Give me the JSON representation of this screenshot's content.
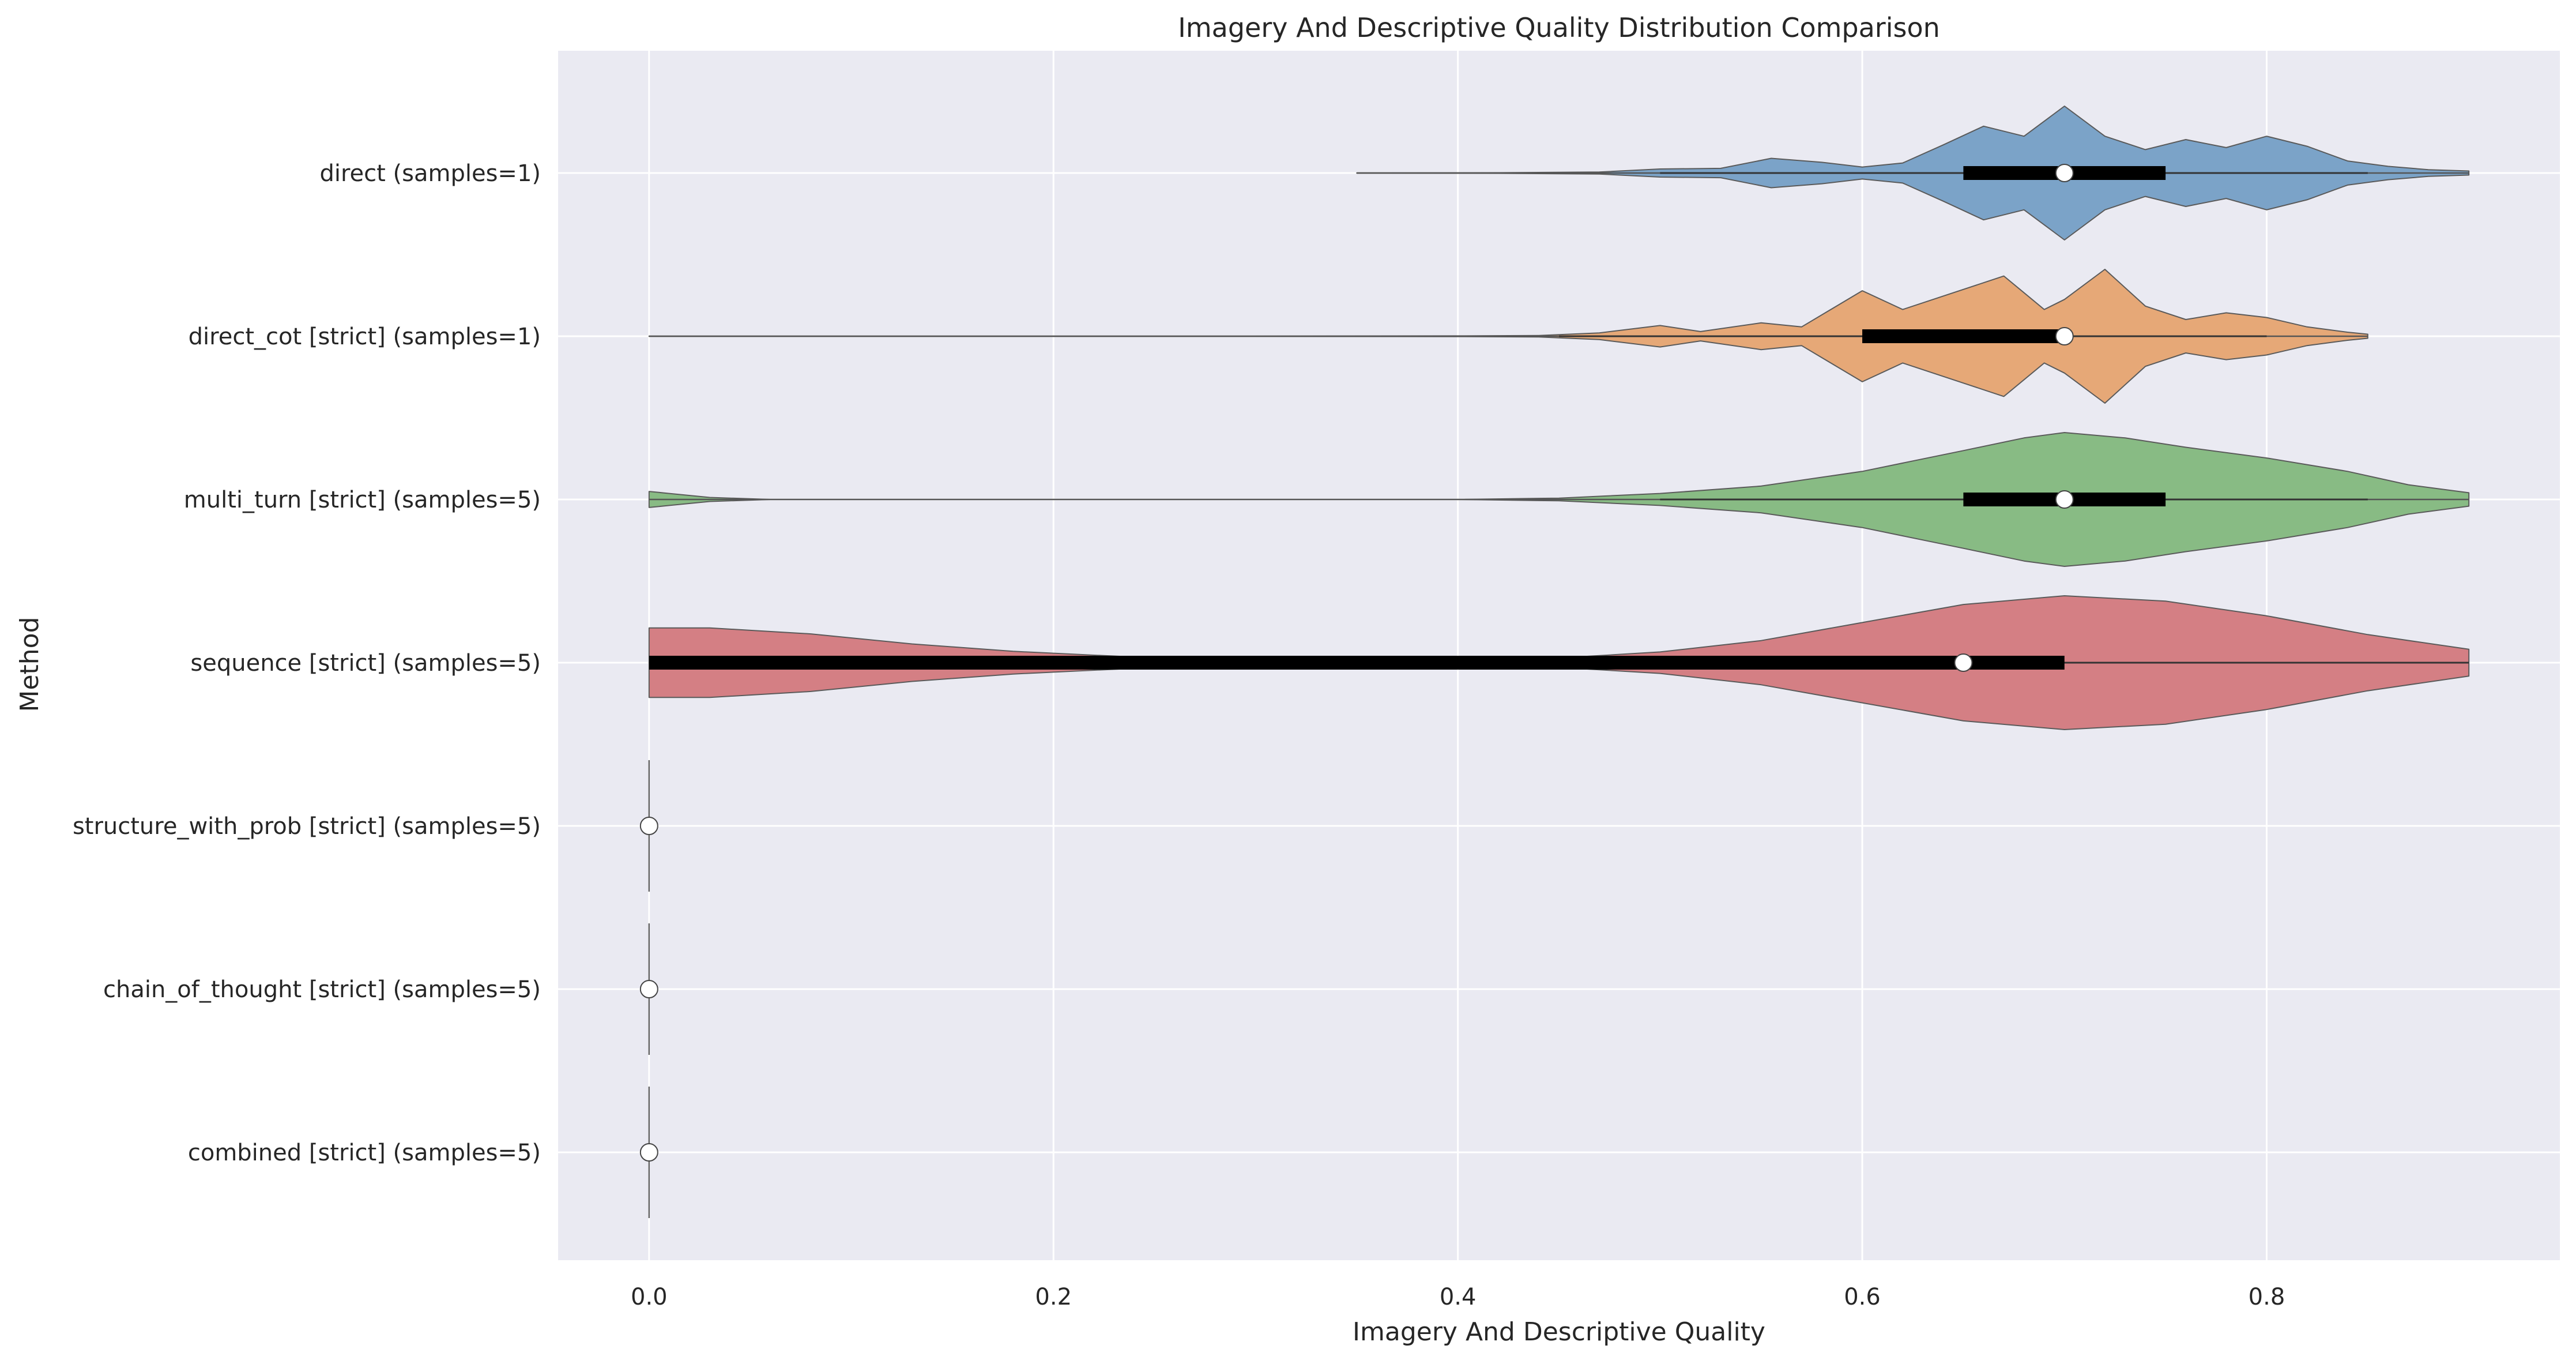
{
  "chart_data": {
    "type": "violin",
    "title": "Imagery And Descriptive Quality Distribution Comparison",
    "xlabel": "Imagery And Descriptive Quality",
    "ylabel": "Method",
    "xlim": [
      -0.045,
      0.945
    ],
    "xticks": [
      "0.0",
      "0.2",
      "0.4",
      "0.6",
      "0.8"
    ],
    "grid": true,
    "orientation": "horizontal",
    "series": [
      {
        "name": "direct (samples=1)",
        "color": "#7ba3c8",
        "median": 0.7,
        "q1": 0.65,
        "q3": 0.75,
        "whisker_low": 0.5,
        "whisker_high": 0.85,
        "range": [
          0.35,
          0.9
        ],
        "density": [
          [
            0.35,
            0.002
          ],
          [
            0.42,
            0.004
          ],
          [
            0.47,
            0.015
          ],
          [
            0.5,
            0.06
          ],
          [
            0.53,
            0.07
          ],
          [
            0.555,
            0.22
          ],
          [
            0.58,
            0.16
          ],
          [
            0.6,
            0.09
          ],
          [
            0.62,
            0.15
          ],
          [
            0.64,
            0.42
          ],
          [
            0.66,
            0.7
          ],
          [
            0.68,
            0.55
          ],
          [
            0.7,
            1.0
          ],
          [
            0.72,
            0.55
          ],
          [
            0.74,
            0.35
          ],
          [
            0.76,
            0.5
          ],
          [
            0.78,
            0.38
          ],
          [
            0.8,
            0.55
          ],
          [
            0.82,
            0.4
          ],
          [
            0.84,
            0.18
          ],
          [
            0.86,
            0.1
          ],
          [
            0.88,
            0.05
          ],
          [
            0.9,
            0.03
          ]
        ]
      },
      {
        "name": "direct_cot [strict] (samples=1)",
        "color": "#e6a877",
        "median": 0.7,
        "q1": 0.6,
        "q3": 0.7,
        "whisker_low": 0.45,
        "whisker_high": 0.8,
        "range": [
          0.0,
          0.85
        ],
        "density": [
          [
            0.0,
            0.003
          ],
          [
            0.3,
            0.003
          ],
          [
            0.4,
            0.005
          ],
          [
            0.44,
            0.01
          ],
          [
            0.47,
            0.05
          ],
          [
            0.5,
            0.16
          ],
          [
            0.52,
            0.07
          ],
          [
            0.55,
            0.2
          ],
          [
            0.57,
            0.14
          ],
          [
            0.6,
            0.68
          ],
          [
            0.62,
            0.4
          ],
          [
            0.65,
            0.7
          ],
          [
            0.67,
            0.9
          ],
          [
            0.69,
            0.4
          ],
          [
            0.7,
            0.55
          ],
          [
            0.72,
            1.0
          ],
          [
            0.74,
            0.45
          ],
          [
            0.76,
            0.25
          ],
          [
            0.78,
            0.35
          ],
          [
            0.8,
            0.28
          ],
          [
            0.82,
            0.14
          ],
          [
            0.84,
            0.06
          ],
          [
            0.85,
            0.03
          ]
        ]
      },
      {
        "name": "multi_turn [strict] (samples=5)",
        "color": "#88bb84",
        "median": 0.7,
        "q1": 0.65,
        "q3": 0.75,
        "whisker_low": 0.5,
        "whisker_high": 0.85,
        "range": [
          0.0,
          0.9
        ],
        "density": [
          [
            0.0,
            0.12
          ],
          [
            0.01,
            0.09
          ],
          [
            0.03,
            0.03
          ],
          [
            0.06,
            0.0
          ],
          [
            0.1,
            0.0
          ],
          [
            0.4,
            0.0
          ],
          [
            0.45,
            0.02
          ],
          [
            0.5,
            0.09
          ],
          [
            0.55,
            0.2
          ],
          [
            0.6,
            0.42
          ],
          [
            0.65,
            0.73
          ],
          [
            0.68,
            0.92
          ],
          [
            0.7,
            1.0
          ],
          [
            0.73,
            0.92
          ],
          [
            0.76,
            0.78
          ],
          [
            0.8,
            0.62
          ],
          [
            0.84,
            0.42
          ],
          [
            0.87,
            0.22
          ],
          [
            0.9,
            0.1
          ]
        ]
      },
      {
        "name": "sequence [strict] (samples=5)",
        "color": "#d47f84",
        "median": 0.65,
        "q1": 0.0,
        "q3": 0.7,
        "whisker_low": 0.0,
        "whisker_high": 0.9,
        "range": [
          0.0,
          0.9
        ],
        "density": [
          [
            0.0,
            0.52
          ],
          [
            0.03,
            0.52
          ],
          [
            0.08,
            0.43
          ],
          [
            0.13,
            0.28
          ],
          [
            0.18,
            0.17
          ],
          [
            0.25,
            0.07
          ],
          [
            0.32,
            0.03
          ],
          [
            0.4,
            0.03
          ],
          [
            0.45,
            0.07
          ],
          [
            0.5,
            0.16
          ],
          [
            0.55,
            0.33
          ],
          [
            0.6,
            0.6
          ],
          [
            0.65,
            0.87
          ],
          [
            0.7,
            1.0
          ],
          [
            0.75,
            0.92
          ],
          [
            0.8,
            0.7
          ],
          [
            0.85,
            0.42
          ],
          [
            0.9,
            0.2
          ]
        ]
      },
      {
        "name": "structure_with_prob [strict] (samples=5)",
        "color": "#9b8cc2",
        "median": 0.0,
        "q1": 0.0,
        "q3": 0.0,
        "whisker_low": 0.0,
        "whisker_high": 0.0,
        "range": [
          0.0,
          0.0
        ],
        "density": []
      },
      {
        "name": "chain_of_thought [strict] (samples=5)",
        "color": "#a9867c",
        "median": 0.0,
        "q1": 0.0,
        "q3": 0.0,
        "whisker_low": 0.0,
        "whisker_high": 0.0,
        "range": [
          0.0,
          0.0
        ],
        "density": []
      },
      {
        "name": "combined [strict] (samples=5)",
        "color": "#dd9fcb",
        "median": 0.0,
        "q1": 0.0,
        "q3": 0.0,
        "whisker_low": 0.0,
        "whisker_high": 0.0,
        "range": [
          0.0,
          0.0
        ],
        "density": []
      }
    ]
  }
}
